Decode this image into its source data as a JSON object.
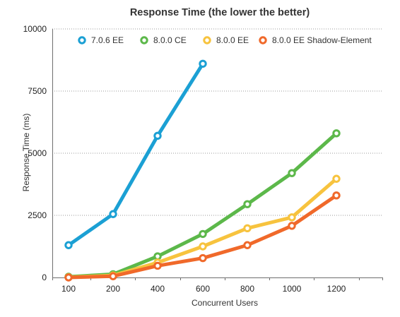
{
  "chart_data": {
    "type": "line",
    "title": "Response Time (the lower the better)",
    "xlabel": "Concurrent Users",
    "ylabel": "Response Time (ms)",
    "x": [
      100,
      200,
      400,
      600,
      800,
      1000,
      1200
    ],
    "xticks": [
      "100",
      "200",
      "400",
      "600",
      "800",
      "1000",
      "1200"
    ],
    "ylim": [
      0,
      10000
    ],
    "yticks": [
      0,
      2500,
      5000,
      7500,
      10000
    ],
    "grid": "horizontal-dotted",
    "legend": "top",
    "series": [
      {
        "name": "7.0.6 EE",
        "color": "#1ba0d4",
        "values": [
          1300,
          2550,
          5700,
          8600,
          null,
          null,
          null
        ]
      },
      {
        "name": "8.0.0 CE",
        "color": "#5cb84a",
        "values": [
          30,
          130,
          850,
          1750,
          2950,
          4200,
          5800
        ]
      },
      {
        "name": "8.0.0 EE",
        "color": "#f7c33e",
        "values": [
          10,
          80,
          600,
          1250,
          1980,
          2420,
          3970
        ]
      },
      {
        "name": "8.0.0 EE Shadow-Element",
        "color": "#f0692a",
        "values": [
          0,
          50,
          470,
          780,
          1300,
          2080,
          3300
        ]
      }
    ]
  }
}
